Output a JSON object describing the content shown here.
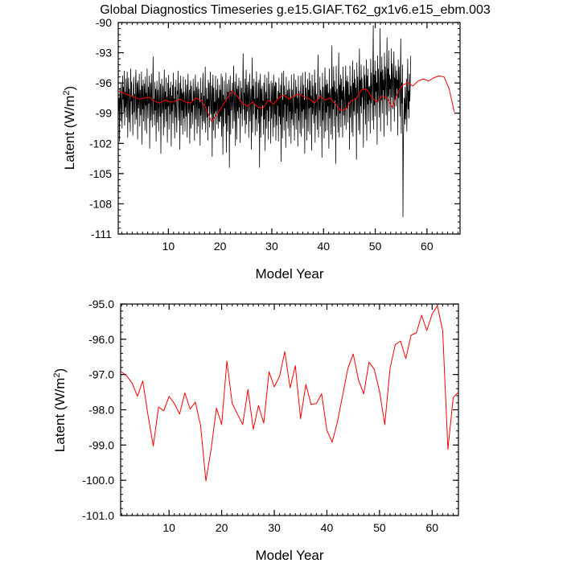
{
  "title": "Global Diagnostics Timeseries g.e15.GIAF.T62_gx1v6.e15_ebm.003",
  "chart_data": [
    {
      "type": "line",
      "xlabel": "Model Year",
      "ylabel_main": "Latent (W/m",
      "ylabel_sup": "2",
      "ylabel_tail": ")",
      "xlim": [
        0.3,
        66.4
      ],
      "ylim": [
        -111,
        -90
      ],
      "xticks": [
        10,
        20,
        30,
        40,
        50,
        60
      ],
      "yticks": [
        -90,
        -93,
        -96,
        -99,
        -102,
        -105,
        -108,
        -111
      ],
      "series": [
        {
          "kind": "monthly",
          "color": "#000000",
          "x_start": 0.3,
          "x_step": 0.0833,
          "values": [
            -96.3,
            -98.8,
            -97.5,
            -101.8,
            -96.5,
            -97.3,
            -99.8,
            -96.1,
            -98.2,
            -100.5,
            -95.3,
            -97.6,
            -96.4,
            -98.9,
            -94.8,
            -100.2,
            -96.9,
            -98.4,
            -95.6,
            -99.4,
            -97.2,
            -94.9,
            -101.4,
            -97.0,
            -95.5,
            -99.9,
            -96.6,
            -98.3,
            -100.8,
            -94.6,
            -97.8,
            -95.9,
            -99.1,
            -97.3,
            -101.2,
            -96.4,
            -95.4,
            -98.9,
            -97.1,
            -100.1,
            -96.2,
            -94.7,
            -99.6,
            -97.8,
            -96.0,
            -101.6,
            -95.8,
            -98.5,
            -97.5,
            -95.1,
            -100.3,
            -96.7,
            -99.2,
            -97.4,
            -94.9,
            -102.1,
            -96.3,
            -98.6,
            -95.7,
            -99.8,
            -97.6,
            -96.1,
            -100.7,
            -95.4,
            -98.2,
            -97.0,
            -101.0,
            -94.6,
            -97.9,
            -99.5,
            -96.4,
            -98.0,
            -95.3,
            -102.5,
            -97.4,
            -96.0,
            -99.7,
            -95.1,
            -98.3,
            -100.4,
            -96.8,
            -93.4,
            -99.1,
            -97.6,
            -100.2,
            -95.9,
            -98.7,
            -96.6,
            -101.8,
            -97.1,
            -95.8,
            -99.9,
            -96.7,
            -98.4,
            -100.8,
            -94.9,
            -97.8,
            -99.3,
            -96.1,
            -103.0,
            -97.5,
            -95.6,
            -99.0,
            -98.1,
            -96.3,
            -101.2,
            -97.2,
            -94.7,
            -100.4,
            -96.9,
            -98.6,
            -95.5,
            -99.8,
            -97.4,
            -101.9,
            -96.0,
            -98.3,
            -95.2,
            -100.6,
            -97.7,
            -96.5,
            -99.1,
            -95.9,
            -102.3,
            -97.3,
            -98.8,
            -96.2,
            -100.0,
            -95.0,
            -98.1,
            -97.6,
            -101.5,
            -96.4,
            -99.4,
            -95.7,
            -98.9,
            -100.9,
            -96.8,
            -97.1,
            -94.8,
            -99.7,
            -98.2,
            -96.0,
            -102.6,
            -97.5,
            -95.3,
            -100.2,
            -96.6,
            -98.7,
            -97.0,
            -101.1,
            -95.4,
            -99.5,
            -96.9,
            -98.0,
            -100.8,
            -95.7,
            -97.7,
            -99.3,
            -96.2,
            -101.4,
            -97.4,
            -95.1,
            -99.0,
            -98.4,
            -96.7,
            -102.0,
            -97.2,
            -95.8,
            -100.5,
            -96.3,
            -98.9,
            -97.8,
            -100.1,
            -95.6,
            -98.2,
            -96.8,
            -101.7,
            -97.1,
            -95.2,
            -99.6,
            -98.0,
            -96.4,
            -101.0,
            -97.5,
            -95.9,
            -100.3,
            -96.6,
            -98.5,
            -97.9,
            -102.2,
            -95.5,
            -99.2,
            -97.0,
            -98.7,
            -100.6,
            -96.1,
            -95.0,
            -99.8,
            -97.3,
            -100.0,
            -96.8,
            -94.4,
            -100.9,
            -98.1,
            -96.5,
            -99.4,
            -97.6,
            -101.7,
            -95.7,
            -98.3,
            -96.0,
            -100.4,
            -97.4,
            -94.9,
            -99.1,
            -98.6,
            -96.3,
            -103.3,
            -97.0,
            -95.2,
            -100.7,
            -96.5,
            -99.0,
            -97.9,
            -101.5,
            -95.3,
            -98.8,
            -96.7,
            -100.1,
            -97.7,
            -95.6,
            -100.5,
            -97.5,
            -99.8,
            -96.2,
            -99.9,
            -96.7,
            -99.3,
            -95.1,
            -101.3,
            -97.9,
            -95.4,
            -103.1,
            -97.2,
            -100.3,
            -95.8,
            -98.5,
            -97.7,
            -100.0,
            -95.0,
            -102.9,
            -98.0,
            -96.1,
            -100.8,
            -96.9,
            -99.2,
            -95.7,
            -104.4,
            -97.3,
            -95.3,
            -101.1,
            -96.8,
            -98.7,
            -97.6,
            -96.0,
            -100.5,
            -97.1,
            -94.3,
            -99.8,
            -98.2,
            -95.9,
            -102.2,
            -97.4,
            -95.1,
            -101.6,
            -96.6,
            -98.8,
            -96.3,
            -99.5,
            -95.5,
            -98.4,
            -97.8,
            -101.9,
            -95.8,
            -99.0,
            -96.5,
            -97.6,
            -100.3,
            -96.9,
            -93.1,
            -98.6,
            -97.0,
            -99.7,
            -95.6,
            -101.0,
            -97.7,
            -94.7,
            -100.1,
            -96.2,
            -98.8,
            -97.4,
            -95.9,
            -101.4,
            -97.1,
            -95.1,
            -99.8,
            -98.0,
            -96.6,
            -102.6,
            -97.3,
            -93.5,
            -100.9,
            -96.3,
            -99.1,
            -95.6,
            -98.0,
            -97.6,
            -101.2,
            -95.9,
            -99.6,
            -94.9,
            -100.8,
            -97.5,
            -98.6,
            -96.0,
            -100.0,
            -95.7,
            -104.4,
            -97.2,
            -95.1,
            -101.4,
            -96.6,
            -99.3,
            -96.3,
            -98.2,
            -97.8,
            -101.1,
            -96.0,
            -99.6,
            -95.2,
            -102.7,
            -97.4,
            -96.9,
            -100.5,
            -95.5,
            -98.7,
            -97.6,
            -101.6,
            -94.9,
            -99.8,
            -96.1,
            -98.3,
            -97.9,
            -102.0,
            -95.8,
            -99.5,
            -97.4,
            -96.0,
            -101.3,
            -97.6,
            -95.2,
            -100.4,
            -96.3,
            -99.1,
            -95.9,
            -101.7,
            -96.0,
            -100.2,
            -97.6,
            -98.2,
            -96.8,
            -101.8,
            -95.5,
            -99.3,
            -97.0,
            -100.1,
            -96.2,
            -103.8,
            -96.5,
            -95.0,
            -101.5,
            -97.7,
            -99.4,
            -94.8,
            -100.7,
            -96.3,
            -98.1,
            -97.2,
            -102.4,
            -95.4,
            -99.8,
            -97.3,
            -96.7,
            -100.5,
            -97.2,
            -95.8,
            -101.3,
            -96.6,
            -98.8,
            -97.5,
            -102.0,
            -95.2,
            -99.6,
            -96.7,
            -98.9,
            -100.2,
            -96.6,
            -95.1,
            -101.7,
            -97.4,
            -99.0,
            -95.7,
            -100.6,
            -96.4,
            -98.5,
            -97.5,
            -102.3,
            -95.3,
            -99.7,
            -96.8,
            -98.2,
            -101.0,
            -96.8,
            -95.3,
            -101.3,
            -97.1,
            -98.8,
            -95.0,
            -100.5,
            -96.2,
            -98.6,
            -97.7,
            -103.0,
            -94.9,
            -99.6,
            -96.5,
            -97.9,
            -101.7,
            -96.5,
            -95.6,
            -100.8,
            -96.7,
            -98.5,
            -95.0,
            -101.1,
            -95.8,
            -98.4,
            -97.3,
            -102.7,
            -95.2,
            -99.1,
            -96.3,
            -98.2,
            -100.0,
            -97.3,
            -94.7,
            -101.9,
            -96.0,
            -99.2,
            -97.1,
            -97.9,
            -100.6,
            -96.0,
            -93.2,
            -101.4,
            -97.6,
            -98.7,
            -95.4,
            -100.3,
            -96.7,
            -97.2,
            -98.2,
            -103.4,
            -95.0,
            -99.7,
            -96.4,
            -98.1,
            -101.5,
            -96.8,
            -94.5,
            -100.8,
            -96.2,
            -98.9,
            -95.7,
            -100.7,
            -96.1,
            -98.3,
            -97.0,
            -102.5,
            -94.6,
            -99.5,
            -97.6,
            -96.6,
            -101.1,
            -97.3,
            -92.3,
            -101.6,
            -96.4,
            -98.6,
            -94.4,
            -100.3,
            -95.8,
            -97.7,
            -96.9,
            -104.0,
            -94.3,
            -99.3,
            -96.6,
            -97.5,
            -100.9,
            -96.1,
            -93.0,
            -101.4,
            -96.2,
            -99.0,
            -95.2,
            -100.4,
            -95.6,
            -97.6,
            -96.8,
            -101.4,
            -94.4,
            -99.2,
            -96.4,
            -97.8,
            -100.2,
            -96.9,
            -94.3,
            -100.6,
            -95.8,
            -98.5,
            -95.3,
            -99.9,
            -95.9,
            -97.9,
            -97.2,
            -102.6,
            -94.3,
            -99.4,
            -96.3,
            -97.0,
            -100.9,
            -96.4,
            -93.8,
            -101.3,
            -96.0,
            -98.8,
            -94.7,
            -99.2,
            -95.6,
            -97.5,
            -96.5,
            -103.6,
            -94.0,
            -99.0,
            -95.4,
            -97.2,
            -100.7,
            -95.7,
            -92.6,
            -101.1,
            -95.7,
            -98.3,
            -94.2,
            -99.0,
            -95.5,
            -97.4,
            -96.6,
            -102.4,
            -94.3,
            -98.6,
            -95.2,
            -96.8,
            -100.1,
            -95.9,
            -93.7,
            -101.7,
            -95.3,
            -98.1,
            -94.6,
            -99.8,
            -96.4,
            -97.7,
            -96.3,
            -101.0,
            -93.6,
            -98.0,
            -95.0,
            -96.5,
            -99.7,
            -95.1,
            -90.3,
            -100.6,
            -95.2,
            -98.2,
            -93.8,
            -99.3,
            -94.8,
            -96.8,
            -96.0,
            -102.1,
            -93.3,
            -97.9,
            -94.6,
            -96.2,
            -99.4,
            -95.7,
            -90.6,
            -100.8,
            -94.9,
            -97.7,
            -93.4,
            -99.0,
            -94.7,
            -96.7,
            -95.7,
            -101.3,
            -93.0,
            -97.6,
            -94.4,
            -96.0,
            -99.2,
            -95.2,
            -91.5,
            -100.2,
            -94.6,
            -97.3,
            -92.8,
            -98.8,
            -95.2,
            -96.6,
            -95.6,
            -100.8,
            -92.6,
            -97.4,
            -94.1,
            -95.8,
            -98.6,
            -95.0,
            -92.9,
            -99.8,
            -95.5,
            -97.6,
            -94.3,
            -98.3,
            -94.8,
            -96.5,
            -95.7,
            -101.2,
            -93.7,
            -97.5,
            -94.4,
            -96.1,
            -99.3,
            -95.4,
            -91.6,
            -101.0,
            -96.0,
            -98.0,
            -94.2,
            -109.3,
            -101.5,
            -99.8,
            -97.5,
            -100.1,
            -96.4,
            -99.6,
            -98.2,
            -95.6,
            -100.8,
            -97.2,
            -93.6,
            -98.6,
            -96.8,
            -99.5,
            -95.1,
            -97.8,
            -96.0,
            -93.3
          ]
        },
        {
          "kind": "annual",
          "color": "#ff0000",
          "x": [
            0.3,
            1.3,
            2.3,
            3.3,
            4.3,
            5.3,
            6.3,
            7.3,
            8.3,
            9.3,
            10.3,
            11.3,
            12.3,
            13.3,
            14.3,
            15.3,
            16.3,
            17.3,
            18.3,
            19.3,
            20.3,
            21.3,
            22.3,
            23.3,
            24.3,
            25.3,
            26.3,
            27.3,
            28.3,
            29.3,
            30.3,
            31.3,
            32.3,
            33.3,
            34.3,
            35.3,
            36.3,
            37.3,
            38.3,
            39.3,
            40.3,
            41.3,
            42.3,
            43.3,
            44.3,
            45.3,
            46.3,
            47.3,
            48.3,
            49.3,
            50.3,
            51.3,
            52.3,
            53.3,
            54.3,
            55.3,
            56.3,
            57.3,
            58.3,
            59.3,
            60.3,
            61.3,
            62.3,
            63.3,
            64.3,
            65.3
          ],
          "values": [
            -96.8,
            -97.0,
            -97.2,
            -97.4,
            -97.6,
            -97.5,
            -97.4,
            -97.8,
            -98.0,
            -97.7,
            -97.9,
            -97.8,
            -97.6,
            -97.9,
            -98.0,
            -97.5,
            -97.7,
            -98.5,
            -99.8,
            -99.2,
            -98.4,
            -97.6,
            -96.8,
            -97.3,
            -98.0,
            -98.3,
            -97.9,
            -98.4,
            -98.5,
            -97.7,
            -98.1,
            -97.5,
            -97.2,
            -97.6,
            -97.3,
            -97.1,
            -97.4,
            -97.6,
            -98.0,
            -97.3,
            -97.7,
            -97.5,
            -98.1,
            -98.7,
            -98.6,
            -97.8,
            -97.6,
            -96.7,
            -96.6,
            -97.4,
            -97.9,
            -97.3,
            -97.5,
            -98.4,
            -97.0,
            -96.2,
            -96.0,
            -96.3,
            -95.8,
            -95.6,
            -95.8,
            -95.5,
            -95.3,
            -95.4,
            -96.6,
            -98.9
          ]
        }
      ]
    },
    {
      "type": "line",
      "xlabel": "Model Year",
      "ylabel_main": "Latent (W/m",
      "ylabel_sup": "2",
      "ylabel_tail": ")",
      "xlim": [
        0.8,
        65.0
      ],
      "ylim": [
        -101.0,
        -95.0
      ],
      "xticks": [
        10,
        20,
        30,
        40,
        50,
        60
      ],
      "ytick_values": [
        -95.0,
        -96.0,
        -97.0,
        -98.0,
        -99.0,
        -100.0,
        -101.0
      ],
      "ytick_labels": [
        "-95.0",
        "-96.0",
        "-97.0",
        "-98.0",
        "-99.0",
        "-100.0",
        "-101.0"
      ],
      "series": [
        {
          "kind": "annual",
          "color": "#ff0000",
          "x": [
            1,
            2,
            3,
            4,
            5,
            6,
            7,
            8,
            9,
            10,
            11,
            12,
            13,
            14,
            15,
            16,
            17,
            18,
            19,
            20,
            21,
            22,
            23,
            24,
            25,
            26,
            27,
            28,
            29,
            30,
            31,
            32,
            33,
            34,
            35,
            36,
            37,
            38,
            39,
            40,
            41,
            42,
            43,
            44,
            45,
            46,
            47,
            48,
            49,
            50,
            51,
            52,
            53,
            54,
            55,
            56,
            57,
            58,
            59,
            60,
            61,
            62,
            63,
            64,
            65
          ],
          "values": [
            -96.92,
            -97.05,
            -97.25,
            -97.62,
            -97.18,
            -98.15,
            -99.03,
            -97.92,
            -98.03,
            -97.62,
            -97.82,
            -98.12,
            -97.52,
            -97.98,
            -97.78,
            -98.45,
            -100.02,
            -99.12,
            -97.95,
            -98.42,
            -96.62,
            -97.82,
            -98.12,
            -98.42,
            -97.42,
            -98.55,
            -97.88,
            -98.38,
            -96.92,
            -97.35,
            -97.05,
            -96.35,
            -97.38,
            -96.75,
            -98.25,
            -97.28,
            -97.85,
            -97.82,
            -97.55,
            -98.58,
            -98.92,
            -98.35,
            -97.58,
            -96.82,
            -96.42,
            -97.15,
            -97.55,
            -96.65,
            -96.85,
            -97.48,
            -98.42,
            -96.82,
            -96.15,
            -96.05,
            -96.55,
            -95.88,
            -95.82,
            -95.32,
            -95.75,
            -95.28,
            -95.05,
            -95.75,
            -99.12,
            -97.65,
            -97.5
          ]
        }
      ]
    }
  ]
}
